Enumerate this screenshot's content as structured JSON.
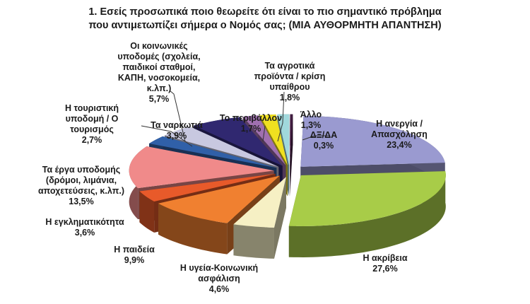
{
  "title": {
    "line1": "1. Εσείς προσωπικά ποιο θεωρείτε ότι είναι το πιο σημαντικό πρόβλημα",
    "line2": "που αντιμετωπίζει σήμερα ο Νομός σας; (ΜΙΑ ΑΥΘΟΡΜΗΤΗ ΑΠΑΝΤΗΣΗ)"
  },
  "labels": {
    "anergia": {
      "l1": "Η ανεργία /",
      "l2": "Απασχόληση",
      "v": "23,4%"
    },
    "akriveia": {
      "l1": "Η ακρίβεια",
      "v": "27,6%"
    },
    "ygeia": {
      "l1": "Η υγεία-Κοινωνική",
      "l2": "ασφάλιση",
      "v": "4,6%"
    },
    "paideia": {
      "l1": "Η παιδεία",
      "v": "9,9%"
    },
    "egklim": {
      "l1": "Η εγκληματικότητα",
      "v": "3,6%"
    },
    "erga": {
      "l1": "Τα έργα υποδομής",
      "l2": "(δρόμοι, λιμάνια,",
      "l3": "αποχετεύσεις, κ.λπ.)",
      "v": "13,5%"
    },
    "tourism": {
      "l1": "Η τουριστική",
      "l2": "υποδομή / Ο",
      "l3": "τουρισμός",
      "v": "2,7%"
    },
    "narkotika": {
      "l1": "Τα ναρκωτιά",
      "v": "3,9%"
    },
    "koinonikes": {
      "l1": "Οι κοινωνικές",
      "l2": "υποδομές (σχολεία,",
      "l3": "παιδικοί σταθμοί,",
      "l4": "ΚΑΠΗ, νοσοκομεία,",
      "l5": "κ.λπ.)",
      "v": "5,7%"
    },
    "perivallon": {
      "l1": "Το περιβάλλον",
      "v": "1,7%"
    },
    "agrotika": {
      "l1": "Τα αγροτικά",
      "l2": "προϊόντα / κρίση",
      "l3": "υπαίθρου",
      "v": "1,8%"
    },
    "allo": {
      "l1": "Άλλο",
      "v": "1,3%"
    },
    "dxda": {
      "l1": "ΔΞ/ΔΑ",
      "v": "0,3%"
    }
  },
  "chart_data": {
    "type": "pie",
    "title": "1. Εσείς προσωπικά ποιο θεωρείτε ότι είναι το πιο σημαντικό πρόβλημα που αντιμετωπίζει σήμερα ο Νομός σας; (ΜΙΑ ΑΥΘΟΡΜΗΤΗ ΑΠΑΝΤΗΣΗ)",
    "style": "3D exploded pie",
    "categories": [
      "Η ανεργία / Απασχόληση",
      "Η ακρίβεια",
      "Η υγεία-Κοινωνική ασφάλιση",
      "Η παιδεία",
      "Η εγκληματικότητα",
      "Τα έργα υποδομής (δρόμοι, λιμάνια, αποχετεύσεις, κ.λπ.)",
      "Η τουριστική υποδομή / Ο τουρισμός",
      "Τα ναρκωτιά",
      "Οι κοινωνικές υποδομές (σχολεία, παιδικοί σταθμοί, ΚΑΠΗ, νοσοκομεία, κ.λπ.)",
      "Το περιβάλλον",
      "Τα αγροτικά προϊόντα / κρίση υπαίθρου",
      "Άλλο",
      "ΔΞ/ΔΑ"
    ],
    "values": [
      23.4,
      27.6,
      4.6,
      9.9,
      3.6,
      13.5,
      2.7,
      3.9,
      5.7,
      1.7,
      1.8,
      1.3,
      0.3
    ],
    "value_labels": [
      "23,4%",
      "27,6%",
      "4,6%",
      "9,9%",
      "3,6%",
      "13,5%",
      "2,7%",
      "3,9%",
      "5,7%",
      "1,7%",
      "1,8%",
      "1,3%",
      "0,3%"
    ],
    "colors": [
      "#9a9ad0",
      "#a8cc48",
      "#f6f0c4",
      "#f08030",
      "#e85a2a",
      "#f08a8a",
      "#3060a8",
      "#c8c8e0",
      "#302870",
      "#a070b0",
      "#f0e020",
      "#a0d8dc",
      "#401c40"
    ],
    "legend": "none (data labels with leader lines)"
  }
}
